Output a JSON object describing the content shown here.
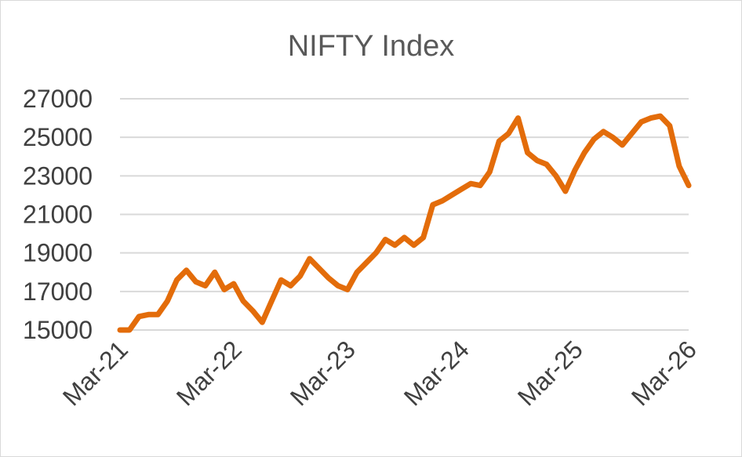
{
  "chart_data": {
    "type": "line",
    "title": "NIFTY Index",
    "xlabel": "",
    "ylabel": "",
    "ylim": [
      15000,
      27000
    ],
    "y_ticks": [
      "27000",
      "25000",
      "23000",
      "21000",
      "19000",
      "17000",
      "15000"
    ],
    "x_ticks": [
      "Mar-21",
      "Mar-22",
      "Mar-23",
      "Mar-24",
      "Mar-25",
      "Mar-26"
    ],
    "grid": true,
    "legend": "none",
    "line_color": "#E36C0A",
    "grid_color": "#d9d9d9",
    "series": [
      {
        "x": [
          "2021-03",
          "2021-04",
          "2021-05",
          "2021-06",
          "2021-07",
          "2021-08",
          "2021-09",
          "2021-10",
          "2021-11",
          "2021-12",
          "2022-01",
          "2022-02",
          "2022-03",
          "2022-04",
          "2022-05",
          "2022-06",
          "2022-07",
          "2022-08",
          "2022-09",
          "2022-10",
          "2022-11",
          "2022-12",
          "2023-01",
          "2023-02",
          "2023-03",
          "2023-04",
          "2023-05",
          "2023-06",
          "2023-07",
          "2023-08",
          "2023-09",
          "2023-10",
          "2023-11",
          "2023-12",
          "2024-01",
          "2024-02",
          "2024-03",
          "2024-04",
          "2024-05",
          "2024-06",
          "2024-07",
          "2024-08",
          "2024-09",
          "2024-10",
          "2024-11",
          "2024-12",
          "2025-01",
          "2025-02",
          "2025-03",
          "2025-04",
          "2025-05",
          "2025-06",
          "2025-07",
          "2025-08",
          "2025-09",
          "2025-10",
          "2025-11",
          "2025-12",
          "2026-01",
          "2026-02",
          "2026-03"
        ],
        "y": [
          15000,
          15000,
          15700,
          15800,
          15800,
          16500,
          17600,
          18100,
          17500,
          17300,
          18000,
          17100,
          17400,
          16500,
          16000,
          15400,
          16500,
          17600,
          17300,
          17800,
          18700,
          18200,
          17700,
          17300,
          17100,
          18000,
          18500,
          19000,
          19700,
          19400,
          19800,
          19400,
          19800,
          21500,
          21700,
          22000,
          22300,
          22600,
          22500,
          23200,
          24800,
          25200,
          26000,
          24200,
          23800,
          23600,
          23000,
          22200,
          23300,
          24200,
          24900,
          25300,
          25000,
          24600,
          25200,
          25800,
          26000,
          26100,
          25600,
          23500,
          22500
        ]
      }
    ]
  }
}
